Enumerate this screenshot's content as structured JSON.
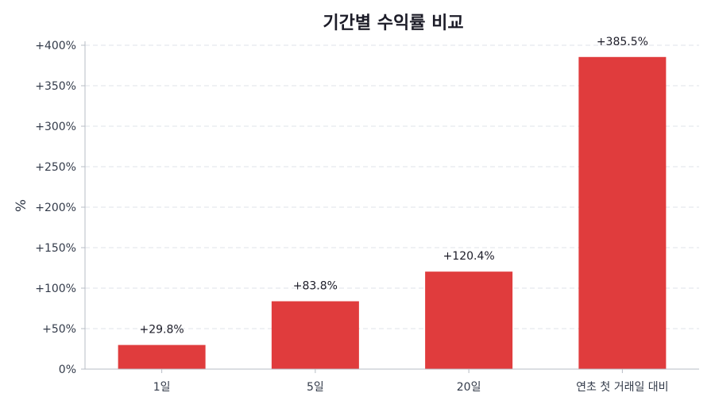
{
  "chart_data": {
    "type": "bar",
    "title": "기간별 수익률 비교",
    "ylabel": "%",
    "xlabel": "",
    "categories": [
      "1일",
      "5일",
      "20일",
      "연초 첫 거래일 대비"
    ],
    "values": [
      29.8,
      83.8,
      120.4,
      385.5
    ],
    "value_labels": [
      "+29.8%",
      "+83.8%",
      "+120.4%",
      "+385.5%"
    ],
    "ylim": [
      0,
      400
    ],
    "yticks": [
      0,
      50,
      100,
      150,
      200,
      250,
      300,
      350,
      400
    ],
    "ytick_labels": [
      "0%",
      "+50%",
      "+100%",
      "+150%",
      "+200%",
      "+250%",
      "+300%",
      "+350%",
      "+400%"
    ],
    "grid": true,
    "bar_color": "#e03c3d"
  }
}
